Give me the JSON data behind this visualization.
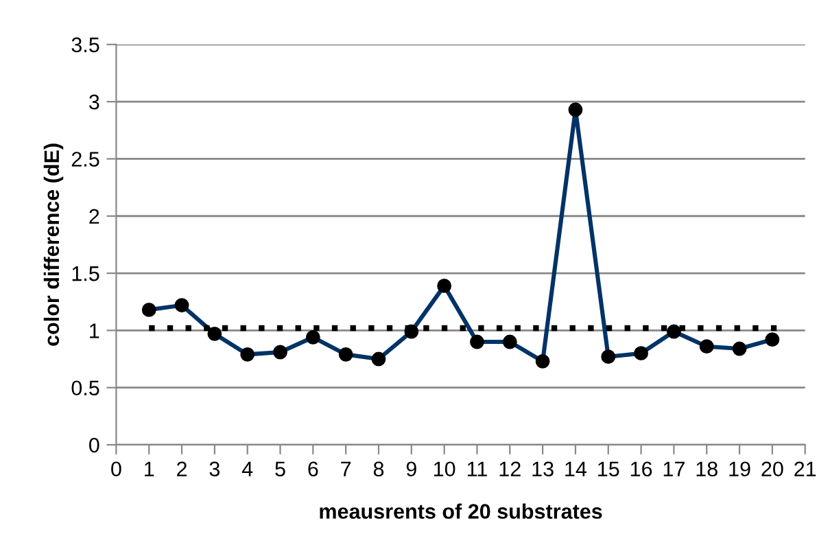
{
  "chart_data": {
    "type": "line",
    "xlabel": "meausrents of 20 substrates",
    "ylabel": "color difference (dE)",
    "series": [
      {
        "color": "#003366",
        "marker": "circle",
        "line_style": "solid",
        "x": [
          1,
          2,
          3,
          4,
          5,
          6,
          7,
          8,
          9,
          10,
          11,
          12,
          13,
          14,
          15,
          16,
          17,
          18,
          19,
          20
        ],
        "values": [
          1.18,
          1.22,
          0.97,
          0.79,
          0.81,
          0.94,
          0.79,
          0.75,
          0.99,
          1.39,
          0.9,
          0.9,
          0.73,
          2.93,
          0.77,
          0.8,
          0.99,
          0.86,
          0.84,
          0.92
        ]
      },
      {
        "color": "#000000",
        "marker": "none",
        "line_style": "dotted",
        "x": [
          1,
          20.5
        ],
        "values": [
          1.02,
          1.02
        ]
      }
    ],
    "xlim": [
      0,
      21
    ],
    "xticks": [
      0,
      1,
      2,
      3,
      4,
      5,
      6,
      7,
      8,
      9,
      10,
      11,
      12,
      13,
      14,
      15,
      16,
      17,
      18,
      19,
      20,
      21
    ],
    "ylim": [
      0,
      3.5
    ],
    "yticks": [
      0,
      0.5,
      1,
      1.5,
      2,
      2.5,
      3,
      3.5
    ],
    "grid": "y",
    "legend": false
  }
}
